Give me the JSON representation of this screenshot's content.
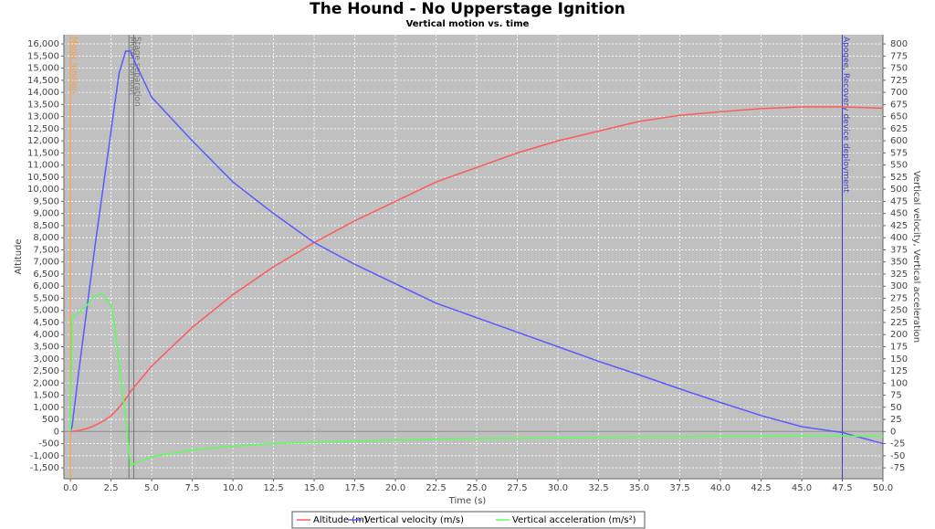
{
  "chart_data": {
    "type": "line",
    "title": "The Hound - No Upperstage Ignition",
    "subtitle": "Vertical motion vs. time",
    "x_label": "Time (s)",
    "y_label": "Altitude",
    "y2_label": "Vertical velocity, Vertical acceleration",
    "x": [
      0,
      0.1,
      0.5,
      1,
      1.5,
      2,
      2.5,
      2.7,
      3,
      3.4,
      3.7,
      4,
      5,
      7.5,
      10,
      12.5,
      15,
      17.5,
      20,
      22.5,
      25,
      27.5,
      30,
      32.5,
      35,
      37.5,
      40,
      42.5,
      45,
      47.5,
      50
    ],
    "series": [
      {
        "name": "Altitude (m)",
        "color": "#ff5a5a",
        "axis": "y",
        "values": [
          0,
          2,
          40,
          120,
          250,
          420,
          650,
          780,
          1000,
          1350,
          1650,
          1900,
          2700,
          4300,
          5650,
          6800,
          7800,
          8700,
          9500,
          10300,
          10900,
          11500,
          12000,
          12400,
          12800,
          13050,
          13200,
          13330,
          13400,
          13400,
          13350
        ]
      },
      {
        "name": "Vertical velocity (m/s)",
        "color": "#5a5aff",
        "axis": "y2",
        "values": [
          0,
          10,
          120,
          250,
          380,
          500,
          620,
          670,
          740,
          785,
          785,
          760,
          690,
          600,
          515,
          450,
          390,
          345,
          305,
          265,
          235,
          205,
          175,
          145,
          117,
          88,
          60,
          33,
          10,
          -2,
          -25
        ]
      },
      {
        "name": "Vertical acceleration (m/s²)",
        "color": "#5aff5a",
        "axis": "y2",
        "values": [
          0,
          235,
          245,
          260,
          280,
          283,
          260,
          225,
          140,
          25,
          -70,
          -65,
          -52,
          -38,
          -30,
          -25,
          -22,
          -20,
          -18,
          -16,
          -15,
          -14,
          -13,
          -12,
          -11,
          -11,
          -10,
          -10,
          -9,
          -9,
          -10
        ]
      }
    ],
    "events": [
      {
        "name": "Motor ignition",
        "x": 0,
        "color": "#ff9a3c"
      },
      {
        "name": "Motor burnout",
        "x": 3.6,
        "color": "#777777"
      },
      {
        "name": "Stage separation",
        "x": 3.9,
        "color": "#777777"
      },
      {
        "name": "Apogee, Recovery device deployment",
        "x": 47.5,
        "color": "#4040c0"
      }
    ],
    "xlim": [
      -0.4,
      50
    ],
    "xticks": [
      {
        "value": 0,
        "label": "0.0"
      },
      2.5,
      {
        "value": 5,
        "label": "5.0"
      },
      7.5,
      {
        "value": 10,
        "label": "10.0"
      },
      12.5,
      {
        "value": 15,
        "label": "15.0"
      },
      17.5,
      {
        "value": 20,
        "label": "20.0"
      },
      22.5,
      {
        "value": 25,
        "label": "25.0"
      },
      27.5,
      {
        "value": 30,
        "label": "30.0"
      },
      32.5,
      {
        "value": 35,
        "label": "35.0"
      },
      37.5,
      {
        "value": 40,
        "label": "40.0"
      },
      42.5,
      {
        "value": 45,
        "label": "45.0"
      },
      47.5,
      {
        "value": 50,
        "label": "50.0"
      }
    ],
    "ylim": [
      -1950,
      16380
    ],
    "yticks": [
      {
        "value": -1500,
        "label": "-1,500"
      },
      {
        "value": -1000,
        "label": "-1,000"
      },
      -500,
      0,
      500,
      {
        "value": 1000,
        "label": "1,000"
      },
      {
        "value": 1500,
        "label": "1,500"
      },
      {
        "value": 2000,
        "label": "2,000"
      },
      {
        "value": 2500,
        "label": "2,500"
      },
      {
        "value": 3000,
        "label": "3,000"
      },
      {
        "value": 3500,
        "label": "3,500"
      },
      {
        "value": 4000,
        "label": "4,000"
      },
      {
        "value": 4500,
        "label": "4,500"
      },
      {
        "value": 5000,
        "label": "5,000"
      },
      {
        "value": 5500,
        "label": "5,500"
      },
      {
        "value": 6000,
        "label": "6,000"
      },
      {
        "value": 6500,
        "label": "6,500"
      },
      {
        "value": 7000,
        "label": "7,000"
      },
      {
        "value": 7500,
        "label": "7,500"
      },
      {
        "value": 8000,
        "label": "8,000"
      },
      {
        "value": 8500,
        "label": "8,500"
      },
      {
        "value": 9000,
        "label": "9,000"
      },
      {
        "value": 9500,
        "label": "9,500"
      },
      {
        "value": 10000,
        "label": "10,000"
      },
      {
        "value": 10500,
        "label": "10,500"
      },
      {
        "value": 11000,
        "label": "11,000"
      },
      {
        "value": 11500,
        "label": "11,500"
      },
      {
        "value": 12000,
        "label": "12,000"
      },
      {
        "value": 12500,
        "label": "12,500"
      },
      {
        "value": 13000,
        "label": "13,000"
      },
      {
        "value": 13500,
        "label": "13,500"
      },
      {
        "value": 14000,
        "label": "14,000"
      },
      {
        "value": 14500,
        "label": "14,500"
      },
      {
        "value": 15000,
        "label": "15,000"
      },
      {
        "value": 15500,
        "label": "15,500"
      },
      {
        "value": 16000,
        "label": "16,000"
      }
    ],
    "y2lim": [
      -97.5,
      819
    ],
    "y2ticks": [
      -75,
      -50,
      -25,
      0,
      25,
      50,
      75,
      100,
      125,
      150,
      175,
      200,
      225,
      250,
      275,
      300,
      325,
      350,
      375,
      400,
      425,
      450,
      475,
      500,
      525,
      550,
      575,
      600,
      625,
      650,
      675,
      700,
      725,
      750,
      775,
      800
    ],
    "grid": true
  }
}
